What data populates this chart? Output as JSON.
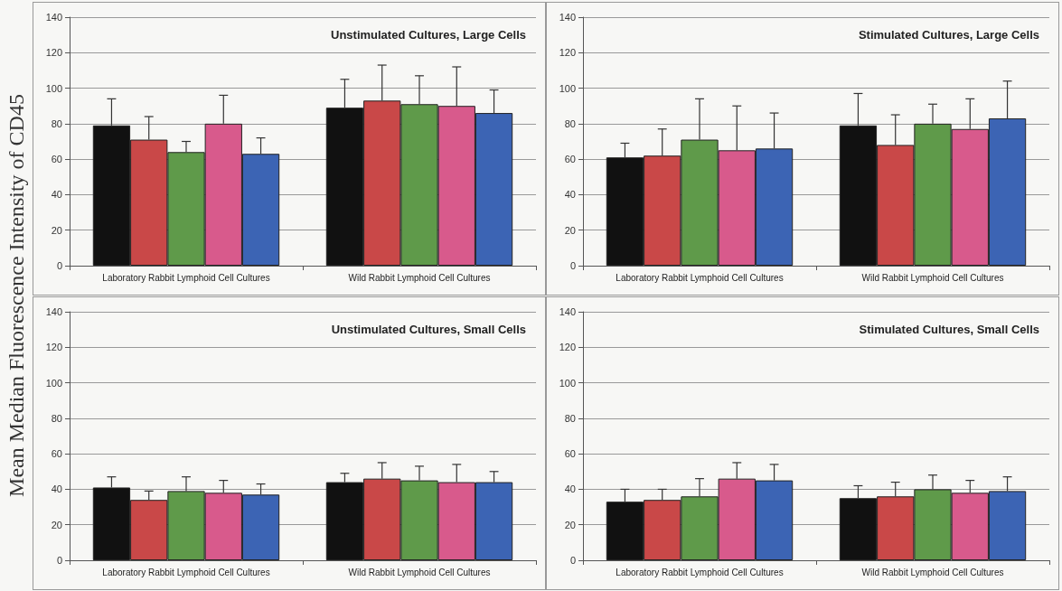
{
  "chart_data": [
    {
      "type": "bar",
      "title": "Unstimulated Cultures, Large Cells",
      "ylabel": "Mean Median Fluorescence Intensity of CD45",
      "categories": [
        "Laboratory Rabbit Lymphoid Cell Cultures",
        "Wild Rabbit Lymphoid Cell Cultures"
      ],
      "ylim": [
        0,
        140
      ],
      "yticks": [
        0,
        20,
        40,
        60,
        80,
        100,
        120,
        140
      ],
      "grid": "y",
      "series": [
        {
          "color": "#111111",
          "values": [
            79,
            89
          ],
          "errors": [
            [
              79,
              94
            ],
            [
              89,
              105
            ]
          ]
        },
        {
          "color": "#c94848",
          "values": [
            71,
            93
          ],
          "errors": [
            [
              71,
              84
            ],
            [
              93,
              113
            ]
          ]
        },
        {
          "color": "#5f9a4a",
          "values": [
            64,
            91
          ],
          "errors": [
            [
              64,
              70
            ],
            [
              91,
              107
            ]
          ]
        },
        {
          "color": "#d85a8c",
          "values": [
            80,
            90
          ],
          "errors": [
            [
              80,
              96
            ],
            [
              90,
              112
            ]
          ]
        },
        {
          "color": "#3c64b4",
          "values": [
            63,
            86
          ],
          "errors": [
            [
              63,
              72
            ],
            [
              86,
              99
            ]
          ]
        }
      ]
    },
    {
      "type": "bar",
      "title": "Stimulated Cultures, Large Cells",
      "categories": [
        "Laboratory Rabbit Lymphoid Cell Cultures",
        "Wild Rabbit Lymphoid Cell Cultures"
      ],
      "ylim": [
        0,
        140
      ],
      "yticks": [
        0,
        20,
        40,
        60,
        80,
        100,
        120,
        140
      ],
      "grid": "y",
      "series": [
        {
          "color": "#111111",
          "values": [
            61,
            79
          ],
          "errors": [
            [
              61,
              69
            ],
            [
              79,
              97
            ]
          ]
        },
        {
          "color": "#c94848",
          "values": [
            62,
            68
          ],
          "errors": [
            [
              62,
              77
            ],
            [
              68,
              85
            ]
          ]
        },
        {
          "color": "#5f9a4a",
          "values": [
            71,
            80
          ],
          "errors": [
            [
              71,
              94
            ],
            [
              80,
              91
            ]
          ]
        },
        {
          "color": "#d85a8c",
          "values": [
            65,
            77
          ],
          "errors": [
            [
              65,
              90
            ],
            [
              77,
              94
            ]
          ]
        },
        {
          "color": "#3c64b4",
          "values": [
            66,
            83
          ],
          "errors": [
            [
              66,
              86
            ],
            [
              83,
              104
            ]
          ]
        }
      ]
    },
    {
      "type": "bar",
      "title": "Unstimulated Cultures, Small Cells",
      "categories": [
        "Laboratory Rabbit Lymphoid Cell Cultures",
        "Wild Rabbit Lymphoid Cell Cultures"
      ],
      "ylim": [
        0,
        140
      ],
      "yticks": [
        0,
        20,
        40,
        60,
        80,
        100,
        120,
        140
      ],
      "grid": "y",
      "series": [
        {
          "color": "#111111",
          "values": [
            41,
            44
          ],
          "errors": [
            [
              41,
              47
            ],
            [
              44,
              49
            ]
          ]
        },
        {
          "color": "#c94848",
          "values": [
            34,
            46
          ],
          "errors": [
            [
              34,
              39
            ],
            [
              46,
              55
            ]
          ]
        },
        {
          "color": "#5f9a4a",
          "values": [
            39,
            45
          ],
          "errors": [
            [
              39,
              47
            ],
            [
              45,
              53
            ]
          ]
        },
        {
          "color": "#d85a8c",
          "values": [
            38,
            44
          ],
          "errors": [
            [
              38,
              45
            ],
            [
              44,
              54
            ]
          ]
        },
        {
          "color": "#3c64b4",
          "values": [
            37,
            44
          ],
          "errors": [
            [
              37,
              43
            ],
            [
              44,
              50
            ]
          ]
        }
      ]
    },
    {
      "type": "bar",
      "title": "Stimulated Cultures, Small Cells",
      "categories": [
        "Laboratory Rabbit Lymphoid Cell Cultures",
        "Wild Rabbit Lymphoid Cell Cultures"
      ],
      "ylim": [
        0,
        140
      ],
      "yticks": [
        0,
        20,
        40,
        60,
        80,
        100,
        120,
        140
      ],
      "grid": "y",
      "series": [
        {
          "color": "#111111",
          "values": [
            33,
            35
          ],
          "errors": [
            [
              33,
              40
            ],
            [
              35,
              42
            ]
          ]
        },
        {
          "color": "#c94848",
          "values": [
            34,
            36
          ],
          "errors": [
            [
              34,
              40
            ],
            [
              36,
              44
            ]
          ]
        },
        {
          "color": "#5f9a4a",
          "values": [
            36,
            40
          ],
          "errors": [
            [
              36,
              46
            ],
            [
              40,
              48
            ]
          ]
        },
        {
          "color": "#d85a8c",
          "values": [
            46,
            38
          ],
          "errors": [
            [
              46,
              55
            ],
            [
              38,
              45
            ]
          ]
        },
        {
          "color": "#3c64b4",
          "values": [
            45,
            39
          ],
          "errors": [
            [
              45,
              54
            ],
            [
              39,
              47
            ]
          ]
        }
      ]
    }
  ]
}
